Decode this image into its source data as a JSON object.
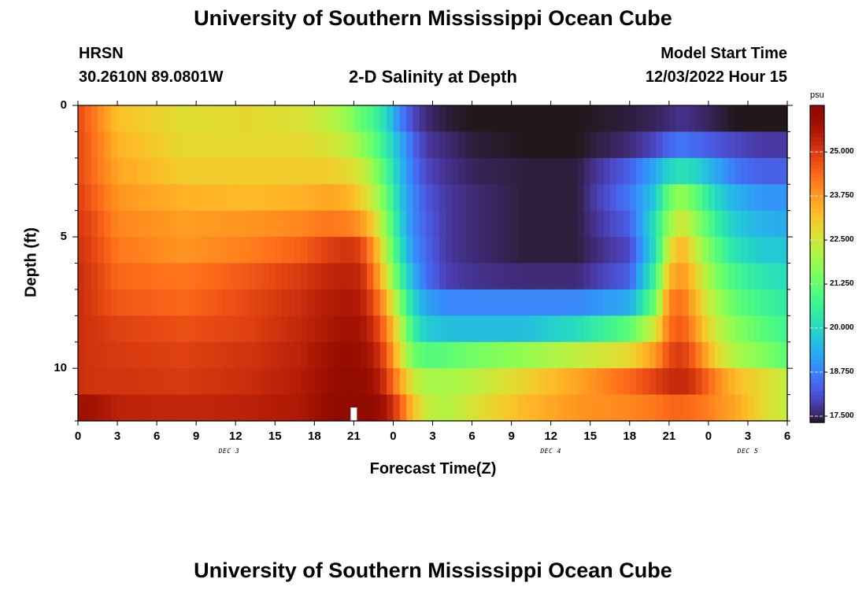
{
  "chart_data": {
    "type": "heatmap",
    "title": "University of Southern Mississippi Ocean Cube",
    "footer_title": "University of Southern Mississippi Ocean Cube",
    "station": "HRSN",
    "coords": "30.2610N  89.0801W",
    "subtitle": "2-D Salinity at Depth",
    "model_start_label": "Model Start Time",
    "model_start_value": "12/03/2022 Hour 15",
    "xlabel": "Forecast Time(Z)",
    "ylabel": "Depth (ft)",
    "x_tick_labels": [
      "0",
      "3",
      "6",
      "9",
      "12",
      "15",
      "18",
      "21",
      "0",
      "3",
      "6",
      "9",
      "12",
      "15",
      "18",
      "21",
      "0",
      "3",
      "6"
    ],
    "x_range_hours": [
      0,
      54
    ],
    "date_labels": [
      {
        "text": "DEC 3",
        "hour": 11.5
      },
      {
        "text": "DEC 4",
        "hour": 36
      },
      {
        "text": "DEC 5",
        "hour": 51
      }
    ],
    "y_tick_labels": [
      "0",
      "5",
      "10"
    ],
    "y_tick_values": [
      0,
      5,
      10
    ],
    "ylim": [
      0,
      12
    ],
    "depth_levels": 12,
    "time_steps": 108,
    "marker_hour": 21,
    "colorbar": {
      "units": "psu",
      "range": [
        17.5,
        26.5
      ],
      "ticks": [
        25.0,
        23.75,
        22.5,
        21.25,
        20.0,
        18.75,
        17.5
      ],
      "tick_labels": [
        "25.000",
        "23.750",
        "22.500",
        "21.250",
        "20.000",
        "18.750",
        "17.500"
      ]
    },
    "salinity_keyframes": {
      "hours": [
        0,
        1,
        3,
        8,
        13,
        17,
        19,
        20.5,
        21.5,
        22.5,
        23.5,
        24.5,
        25.5,
        26.5,
        28,
        30,
        34,
        38,
        42,
        44,
        45,
        46,
        47,
        48,
        49,
        50,
        52,
        54
      ],
      "levels": [
        [
          25.0,
          24.5,
          23.4,
          22.9,
          23.0,
          22.8,
          22.5,
          22.0,
          21.4,
          21.0,
          20.2,
          19.0,
          18.2,
          17.8,
          17.6,
          17.5,
          17.5,
          17.5,
          17.6,
          17.7,
          17.8,
          17.9,
          17.8,
          17.7,
          17.6,
          17.5,
          17.2,
          17.5
        ],
        [
          25.0,
          24.6,
          23.6,
          23.0,
          23.0,
          23.0,
          22.8,
          22.5,
          22.0,
          21.4,
          20.6,
          19.6,
          18.6,
          18.0,
          17.8,
          17.6,
          17.5,
          17.5,
          17.8,
          18.2,
          18.6,
          18.8,
          18.6,
          18.5,
          18.3,
          18.2,
          18.0,
          18.0
        ],
        [
          25.0,
          24.6,
          23.8,
          23.2,
          23.2,
          23.2,
          23.2,
          23.0,
          22.7,
          22.0,
          21.0,
          19.8,
          18.8,
          18.2,
          17.9,
          17.7,
          17.6,
          17.6,
          18.5,
          19.5,
          20.2,
          20.4,
          20.2,
          19.7,
          19.3,
          18.8,
          18.5,
          18.5
        ],
        [
          25.1,
          24.8,
          24.0,
          23.6,
          23.5,
          23.6,
          23.8,
          23.6,
          23.2,
          22.5,
          21.4,
          20.0,
          19.0,
          18.4,
          18.0,
          17.8,
          17.6,
          17.6,
          18.8,
          20.0,
          21.5,
          22.0,
          21.4,
          20.6,
          20.0,
          19.6,
          19.2,
          19.2
        ],
        [
          25.2,
          25.0,
          24.2,
          23.9,
          24.0,
          24.2,
          24.4,
          24.3,
          24.0,
          23.2,
          21.8,
          20.2,
          19.0,
          18.5,
          18.0,
          17.8,
          17.6,
          17.6,
          18.5,
          20.5,
          22.0,
          22.8,
          22.0,
          21.2,
          20.5,
          20.0,
          19.6,
          19.5
        ],
        [
          25.3,
          25.1,
          24.4,
          24.0,
          24.3,
          24.7,
          25.1,
          25.3,
          25.1,
          24.0,
          22.2,
          20.5,
          19.2,
          18.6,
          18.0,
          17.8,
          17.6,
          17.6,
          18.2,
          20.4,
          22.8,
          23.6,
          22.6,
          21.7,
          21.0,
          20.4,
          20.0,
          19.9
        ],
        [
          25.4,
          25.2,
          24.6,
          24.4,
          24.8,
          25.2,
          25.5,
          25.6,
          25.5,
          24.5,
          22.8,
          21.0,
          19.6,
          18.7,
          18.1,
          17.9,
          17.8,
          17.8,
          18.5,
          21.0,
          23.5,
          24.0,
          23.2,
          22.2,
          21.5,
          21.0,
          20.5,
          20.3
        ],
        [
          25.4,
          25.2,
          24.8,
          24.6,
          25.0,
          25.4,
          25.7,
          25.8,
          25.7,
          25.0,
          23.6,
          21.8,
          20.2,
          19.4,
          19.0,
          19.0,
          19.0,
          19.0,
          19.5,
          21.6,
          24.2,
          24.5,
          23.6,
          22.6,
          22.0,
          21.4,
          20.9,
          20.6
        ],
        [
          25.4,
          25.3,
          25.1,
          24.9,
          25.1,
          25.5,
          25.8,
          26.0,
          25.9,
          25.4,
          24.3,
          22.5,
          20.8,
          20.0,
          19.8,
          19.8,
          19.8,
          20.3,
          21.3,
          22.8,
          24.5,
          24.8,
          24.0,
          23.0,
          22.4,
          21.9,
          21.3,
          20.9
        ],
        [
          25.4,
          25.3,
          25.2,
          25.1,
          25.3,
          25.6,
          26.0,
          26.2,
          26.1,
          25.7,
          24.8,
          23.0,
          21.6,
          21.2,
          21.3,
          21.6,
          22.0,
          22.5,
          23.0,
          24.0,
          25.0,
          25.2,
          24.6,
          23.6,
          22.8,
          22.3,
          21.8,
          21.3
        ],
        [
          25.4,
          25.3,
          25.3,
          25.2,
          25.4,
          25.7,
          26.1,
          26.3,
          26.2,
          26.0,
          25.2,
          23.9,
          22.7,
          22.2,
          22.2,
          22.4,
          23.1,
          23.8,
          24.6,
          25.1,
          25.4,
          25.5,
          25.2,
          24.6,
          24.0,
          23.5,
          23.0,
          22.5
        ],
        [
          26.0,
          26.0,
          25.6,
          25.5,
          25.6,
          25.8,
          26.2,
          26.5,
          26.5,
          26.3,
          25.8,
          24.8,
          23.4,
          22.6,
          22.3,
          22.8,
          23.5,
          24.0,
          24.2,
          24.4,
          24.6,
          24.6,
          24.5,
          24.3,
          24.0,
          23.8,
          23.0,
          22.5
        ]
      ]
    }
  }
}
